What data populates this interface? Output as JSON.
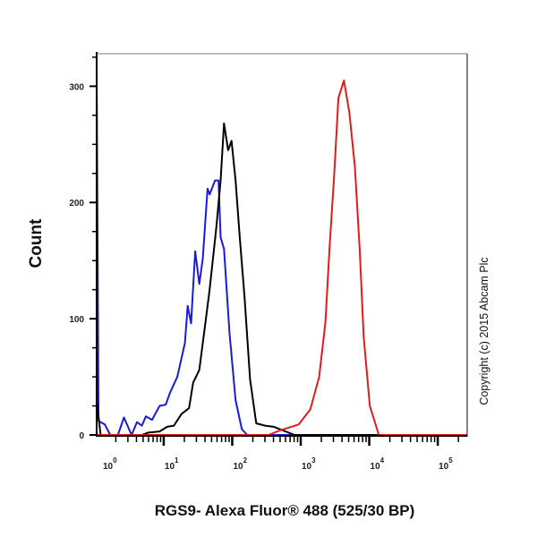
{
  "chart_data": {
    "type": "line",
    "title": "",
    "xlabel": "RGS9- Alexa Fluor® 488 (525/30 BP)",
    "ylabel": "Count",
    "x_scale": "log",
    "xlim": [
      1.05,
      269000
    ],
    "ylim": [
      0,
      328
    ],
    "x_ticks": [
      {
        "value": 1,
        "base": "10",
        "exp": "0"
      },
      {
        "value": 10,
        "base": "10",
        "exp": "1"
      },
      {
        "value": 100,
        "base": "10",
        "exp": "2"
      },
      {
        "value": 1000,
        "base": "10",
        "exp": "3"
      },
      {
        "value": 10000,
        "base": "10",
        "exp": "4"
      },
      {
        "value": 100000,
        "base": "10",
        "exp": "5"
      }
    ],
    "y_ticks": [
      {
        "value": 0,
        "label": "0"
      },
      {
        "value": 100,
        "label": "100"
      },
      {
        "value": 200,
        "label": "200"
      },
      {
        "value": 300,
        "label": "300"
      }
    ],
    "y_minor_step": 25,
    "grid": false,
    "legend": "none",
    "annotation": "Copyright (c) 2015 Abcam Plc",
    "series": [
      {
        "color": "#1a1adc",
        "x": [
          1.05,
          1.05,
          1.12,
          1.38,
          1.66,
          2.14,
          2.63,
          3.39,
          4.07,
          4.79,
          5.5,
          6.76,
          8.71,
          10.7,
          12.3,
          15.8,
          20.4,
          22.4,
          25.1,
          28.8,
          33.1,
          37.2,
          43.7,
          46.8,
          56.2,
          63.1,
          67.6,
          75.9,
          91.2,
          112,
          138,
          166,
          269000
        ],
        "y": [
          0,
          317,
          12,
          9,
          0,
          0,
          15,
          0,
          11,
          8,
          16,
          13,
          25,
          26,
          36,
          50,
          79,
          111,
          96,
          158,
          130,
          152,
          212,
          207,
          219,
          219,
          170,
          160,
          88,
          30,
          5,
          0,
          0
        ]
      },
      {
        "color": "#000000",
        "x": [
          1.05,
          1.05,
          1.2,
          4.79,
          5.89,
          8.71,
          11.2,
          14.1,
          18.2,
          23.4,
          26.9,
          33.1,
          40.7,
          46.8,
          58.9,
          67.6,
          75.9,
          87.1,
          97.7,
          112,
          129,
          151,
          182,
          224,
          302,
          407,
          603,
          813,
          269000
        ],
        "y": [
          0,
          30,
          0,
          0,
          2,
          3,
          7,
          8,
          18,
          23,
          45,
          56,
          97,
          125,
          180,
          219,
          268,
          245,
          253,
          219,
          170,
          119,
          48,
          10,
          8,
          7,
          3,
          0,
          0
        ]
      },
      {
        "color": "#e41a1a",
        "x": [
          1.05,
          339,
          501,
          933,
          1380,
          1860,
          2290,
          2630,
          3090,
          3550,
          4270,
          5130,
          6170,
          7240,
          8320,
          10200,
          13800,
          269000
        ],
        "y": [
          0,
          0,
          4,
          9,
          22,
          50,
          97,
          161,
          225,
          290,
          305,
          277,
          231,
          161,
          84,
          25,
          0,
          0
        ]
      }
    ]
  }
}
